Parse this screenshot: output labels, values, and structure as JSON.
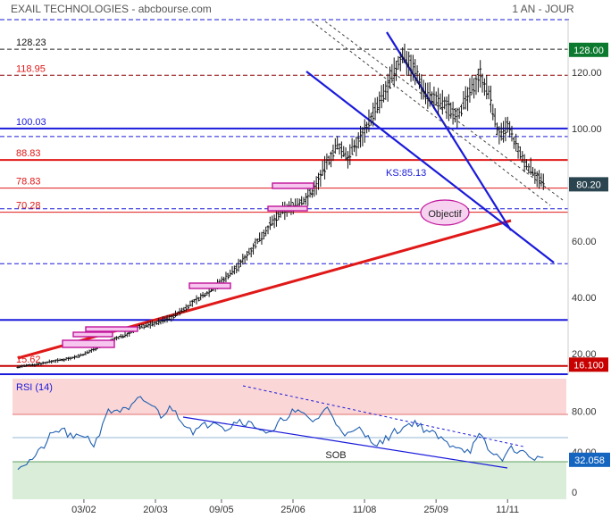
{
  "header": {
    "title": "EXAIL TECHNOLOGIES - abcbourse.com",
    "period": "1 AN - JOUR"
  },
  "colors": {
    "blue": "#1a1adb",
    "red": "#e01818",
    "dark_red": "#c80000",
    "green_badge": "#0b7a2e",
    "dark_badge": "#2b4550",
    "rsi_badge": "#1565c0",
    "price": "#101010",
    "rsi_line": "#1f5fb0",
    "magenta": "#c0139a"
  },
  "chart_data": [
    {
      "type": "ohlc",
      "title": "EXAIL TECHNOLOGIES",
      "y_ticks": [
        "120.00",
        "100.00",
        "80.00",
        "60.00",
        "40.00",
        "20.00"
      ],
      "x_ticks": [
        "03/02",
        "20/03",
        "09/05",
        "25/06",
        "11/08",
        "25/09",
        "11/11"
      ],
      "current_price": "80.20",
      "levels": [
        {
          "label": "128.23",
          "value": 128.23,
          "style": "black-dashed"
        },
        {
          "label": "118.95",
          "value": 118.95,
          "style": "darkred-dashed"
        },
        {
          "label": "100.03",
          "value": 100.03,
          "style": "blue-solid"
        },
        {
          "label": "88.83",
          "value": 88.83,
          "style": "red-solid"
        },
        {
          "label": "78.83",
          "value": 78.83,
          "style": "red-thin"
        },
        {
          "label": "70.28",
          "value": 70.28,
          "style": "red-thin"
        },
        {
          "label": "15.62",
          "value": 15.62,
          "style": "darkred-solid"
        }
      ],
      "badges": [
        {
          "text": "128.00",
          "value": 128.0,
          "color": "green"
        },
        {
          "text": "80.20",
          "value": 80.2,
          "color": "dark"
        },
        {
          "text": "16.100",
          "value": 16.1,
          "color": "darkred"
        }
      ],
      "annotations": {
        "ks": "KS:85.13",
        "target": "Objectif"
      },
      "price_path": [
        [
          0.0,
          15.3
        ],
        [
          0.02,
          15.8
        ],
        [
          0.04,
          16.4
        ],
        [
          0.06,
          17.2
        ],
        [
          0.08,
          17.8
        ],
        [
          0.1,
          18.6
        ],
        [
          0.12,
          19.8
        ],
        [
          0.14,
          21.8
        ],
        [
          0.16,
          23.5
        ],
        [
          0.18,
          25.5
        ],
        [
          0.2,
          27.0
        ],
        [
          0.22,
          29.5
        ],
        [
          0.24,
          30.3
        ],
        [
          0.26,
          31.5
        ],
        [
          0.28,
          33.0
        ],
        [
          0.3,
          35.5
        ],
        [
          0.32,
          38.5
        ],
        [
          0.34,
          41.0
        ],
        [
          0.36,
          44.0
        ],
        [
          0.38,
          47.5
        ],
        [
          0.4,
          51.0
        ],
        [
          0.42,
          56.0
        ],
        [
          0.44,
          61.0
        ],
        [
          0.46,
          66.0
        ],
        [
          0.48,
          70.5
        ],
        [
          0.5,
          72.5
        ],
        [
          0.52,
          74.5
        ],
        [
          0.54,
          79.0
        ],
        [
          0.56,
          87.0
        ],
        [
          0.58,
          94.0
        ],
        [
          0.6,
          90.0
        ],
        [
          0.62,
          96.0
        ],
        [
          0.64,
          103.0
        ],
        [
          0.66,
          110.0
        ],
        [
          0.68,
          118.0
        ],
        [
          0.7,
          126.5
        ],
        [
          0.72,
          121.0
        ],
        [
          0.74,
          113.0
        ],
        [
          0.76,
          110.0
        ],
        [
          0.78,
          108.0
        ],
        [
          0.8,
          105.0
        ],
        [
          0.82,
          112.0
        ],
        [
          0.84,
          119.5
        ],
        [
          0.86,
          110.0
        ],
        [
          0.87,
          100.0
        ],
        [
          0.88,
          97.0
        ],
        [
          0.89,
          101.0
        ],
        [
          0.9,
          96.0
        ],
        [
          0.92,
          88.0
        ],
        [
          0.94,
          84.0
        ],
        [
          0.955,
          80.2
        ]
      ]
    },
    {
      "type": "line",
      "title": "RSI (14)",
      "y_ticks": [
        "80.00",
        "40.00",
        "0"
      ],
      "current_value": "32.058",
      "annotations": {
        "sob": "SOB"
      },
      "rsi_path": [
        [
          0.0,
          26
        ],
        [
          0.02,
          30
        ],
        [
          0.04,
          40
        ],
        [
          0.06,
          56
        ],
        [
          0.08,
          63
        ],
        [
          0.1,
          52
        ],
        [
          0.12,
          58
        ],
        [
          0.14,
          46
        ],
        [
          0.16,
          78
        ],
        [
          0.18,
          82
        ],
        [
          0.2,
          80
        ],
        [
          0.22,
          92
        ],
        [
          0.24,
          88
        ],
        [
          0.26,
          76
        ],
        [
          0.28,
          84
        ],
        [
          0.3,
          70
        ],
        [
          0.32,
          60
        ],
        [
          0.34,
          66
        ],
        [
          0.36,
          72
        ],
        [
          0.38,
          62
        ],
        [
          0.4,
          72
        ],
        [
          0.42,
          68
        ],
        [
          0.44,
          64
        ],
        [
          0.46,
          56
        ],
        [
          0.48,
          72
        ],
        [
          0.5,
          80
        ],
        [
          0.52,
          76
        ],
        [
          0.54,
          70
        ],
        [
          0.56,
          84
        ],
        [
          0.58,
          68
        ],
        [
          0.6,
          56
        ],
        [
          0.62,
          62
        ],
        [
          0.64,
          52
        ],
        [
          0.66,
          48
        ],
        [
          0.68,
          58
        ],
        [
          0.7,
          64
        ],
        [
          0.72,
          70
        ],
        [
          0.74,
          62
        ],
        [
          0.76,
          56
        ],
        [
          0.78,
          48
        ],
        [
          0.8,
          46
        ],
        [
          0.82,
          40
        ],
        [
          0.84,
          56
        ],
        [
          0.86,
          38
        ],
        [
          0.88,
          34
        ],
        [
          0.9,
          44
        ],
        [
          0.92,
          38
        ],
        [
          0.94,
          34
        ],
        [
          0.955,
          32
        ]
      ]
    }
  ]
}
